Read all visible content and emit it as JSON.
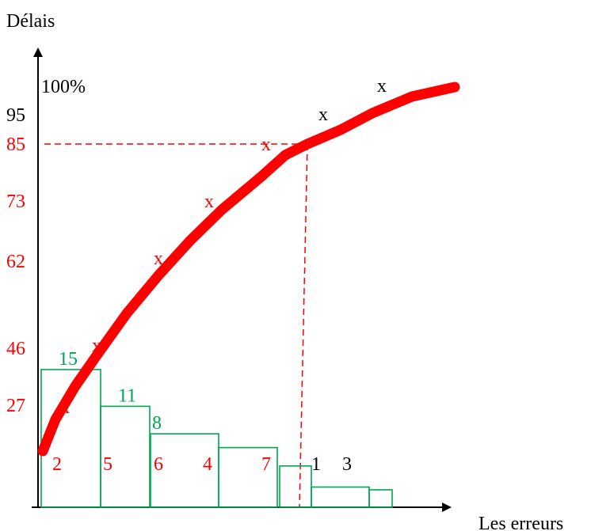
{
  "chart_data": {
    "type": "pareto",
    "ylabel": "Délais",
    "xlabel": "Les erreurs",
    "top_label": "100%",
    "y_ticks": [
      {
        "label": "95",
        "value": 95,
        "color": "#000000"
      },
      {
        "label": "85",
        "value": 85,
        "color": "#ff0000"
      },
      {
        "label": "73",
        "value": 73,
        "color": "#ff0000"
      },
      {
        "label": "62",
        "value": 62,
        "color": "#ff0000"
      },
      {
        "label": "46",
        "value": 46,
        "color": "#ff0000"
      },
      {
        "label": "27",
        "value": 27,
        "color": "#ff0000"
      }
    ],
    "bars": [
      {
        "category": "2",
        "value": 15,
        "value_label": "15"
      },
      {
        "category": "5",
        "value": 11,
        "value_label": "11"
      },
      {
        "category": "6",
        "value": 8,
        "value_label": "8"
      },
      {
        "category": "4",
        "value": 6.5,
        "value_label": ""
      },
      {
        "category": "7",
        "value": 4.5,
        "value_label": ""
      },
      {
        "category": "1",
        "value": 2.2,
        "value_label": ""
      },
      {
        "category": "3",
        "value": 1.9,
        "value_label": ""
      },
      {
        "category": "",
        "value": 1.2,
        "value_label": ""
      }
    ],
    "cumulative_curve": [
      {
        "value": 27
      },
      {
        "value": 46
      },
      {
        "value": 62
      },
      {
        "value": 73
      },
      {
        "value": 85
      },
      {
        "value": 95
      },
      {
        "value": 100
      }
    ],
    "marker": "x",
    "threshold": {
      "value": 85,
      "style": "dashed"
    },
    "colors": {
      "axis": "#000000",
      "curve": "#ff0000",
      "bars": "#00a550",
      "bar_labels": "#00a550",
      "guide": "#ff0000"
    }
  }
}
